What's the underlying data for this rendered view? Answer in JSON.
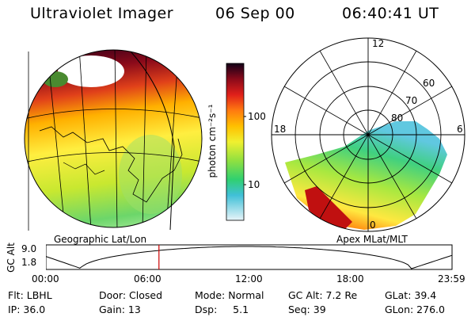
{
  "header": {
    "title": "Ultraviolet Imager",
    "date": "06 Sep 00",
    "time": "06:40:41 UT"
  },
  "colorbar": {
    "unit": "photon cm⁻²s⁻¹",
    "ticks": [
      "100",
      "10"
    ]
  },
  "left_panel": {
    "label": "Geographic Lat/Lon"
  },
  "right_panel": {
    "label": "Apex MLat/MLT",
    "mlt_labels": {
      "top": "12",
      "left": "18",
      "right": "6",
      "bottom": "0"
    },
    "lat_labels": [
      "60",
      "70",
      "80"
    ]
  },
  "altitude_plot": {
    "ylabel": "GC Alt",
    "yticks": [
      "9.0",
      "1.8"
    ],
    "xticks": [
      "00:00",
      "06:00",
      "12:00",
      "18:00",
      "23:59"
    ],
    "marker_time_h": 6.68
  },
  "info": {
    "row1": [
      "Flt: LBHL",
      "Door: Closed",
      "Mode: Normal",
      "GC Alt: 7.2 Re",
      "GLat: 39.4"
    ],
    "row2": [
      "IP: 36.0",
      "Gain: 13",
      "Dsp:     5.1",
      "Seq: 39",
      "GLon: 276.0"
    ]
  },
  "colors": {
    "marker": "#cc0000"
  }
}
